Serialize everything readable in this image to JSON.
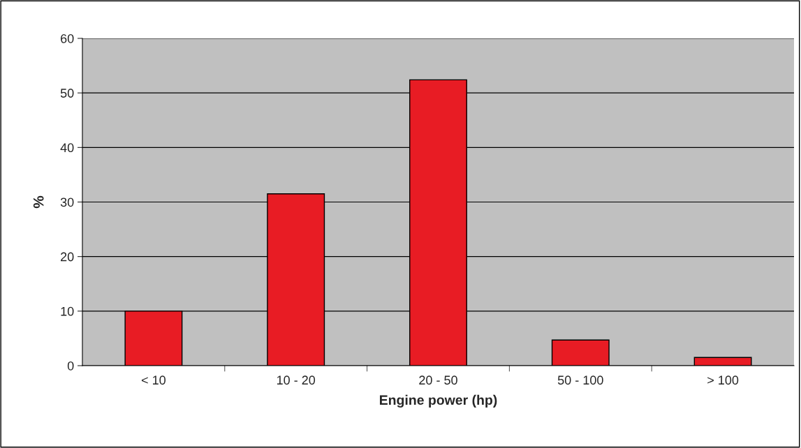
{
  "chart_data": {
    "type": "bar",
    "xlabel": "Engine power (hp)",
    "ylabel": "%",
    "categories": [
      "< 10",
      "10 - 20",
      "20 - 50",
      "50 - 100",
      "> 100"
    ],
    "values": [
      10,
      31.5,
      52.4,
      4.7,
      1.5
    ],
    "color": "#e81c24",
    "ylim": [
      0,
      60
    ],
    "yticks": [
      0,
      10,
      20,
      30,
      40,
      50,
      60
    ],
    "grid": "y"
  }
}
